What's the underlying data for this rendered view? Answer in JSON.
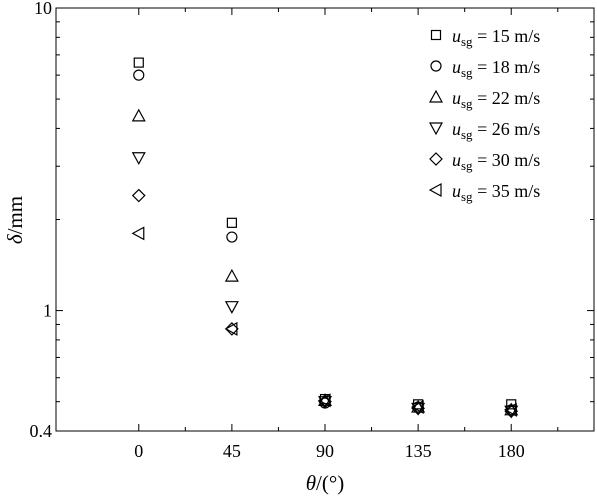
{
  "chart_data": {
    "type": "scatter",
    "xlabel": {
      "symbol": "θ",
      "unit": "/(°)"
    },
    "ylabel": {
      "symbol": "δ",
      "unit": "/mm"
    },
    "y_scale": "log",
    "ylim": [
      0.4,
      10
    ],
    "xlim": [
      -40,
      220
    ],
    "x_ticks": [
      0,
      45,
      90,
      135,
      180
    ],
    "y_tick_labels": [
      {
        "value": 10,
        "label": "10"
      },
      {
        "value": 1,
        "label": "1"
      },
      {
        "value": 0.4,
        "label": "0.4"
      }
    ],
    "grid": false,
    "legend_position": "top-right",
    "series": [
      {
        "name": "u_sg = 15 m/s",
        "legend_var": "u",
        "legend_sub": "sg",
        "legend_text": " = 15 m/s",
        "marker": "square",
        "x": [
          0,
          45,
          90,
          135,
          180
        ],
        "y": [
          6.6,
          1.95,
          0.51,
          0.49,
          0.49
        ]
      },
      {
        "name": "u_sg = 18 m/s",
        "legend_var": "u",
        "legend_sub": "sg",
        "legend_text": " = 18 m/s",
        "marker": "circle",
        "x": [
          0,
          45,
          90,
          135,
          180
        ],
        "y": [
          6.0,
          1.75,
          0.495,
          0.48,
          0.47
        ]
      },
      {
        "name": "u_sg = 22 m/s",
        "legend_var": "u",
        "legend_sub": "sg",
        "legend_text": " = 22 m/s",
        "marker": "triangle-up",
        "x": [
          0,
          45,
          90,
          135,
          180
        ],
        "y": [
          4.4,
          1.3,
          0.505,
          0.48,
          0.47
        ]
      },
      {
        "name": "u_sg = 26 m/s",
        "legend_var": "u",
        "legend_sub": "sg",
        "legend_text": " = 26 m/s",
        "marker": "triangle-down",
        "x": [
          0,
          45,
          90,
          135,
          180
        ],
        "y": [
          3.2,
          1.03,
          0.5,
          0.475,
          0.465
        ]
      },
      {
        "name": "u_sg = 30 m/s",
        "legend_var": "u",
        "legend_sub": "sg",
        "legend_text": " = 30 m/s",
        "marker": "diamond",
        "x": [
          0,
          45,
          90,
          135,
          180
        ],
        "y": [
          2.4,
          0.87,
          0.5,
          0.475,
          0.465
        ]
      },
      {
        "name": "u_sg = 35 m/s",
        "legend_var": "u",
        "legend_sub": "sg",
        "legend_text": " = 35 m/s",
        "marker": "triangle-left",
        "x": [
          0,
          45,
          90,
          135,
          180
        ],
        "y": [
          1.8,
          0.87,
          0.505,
          0.48,
          0.47
        ]
      }
    ]
  }
}
